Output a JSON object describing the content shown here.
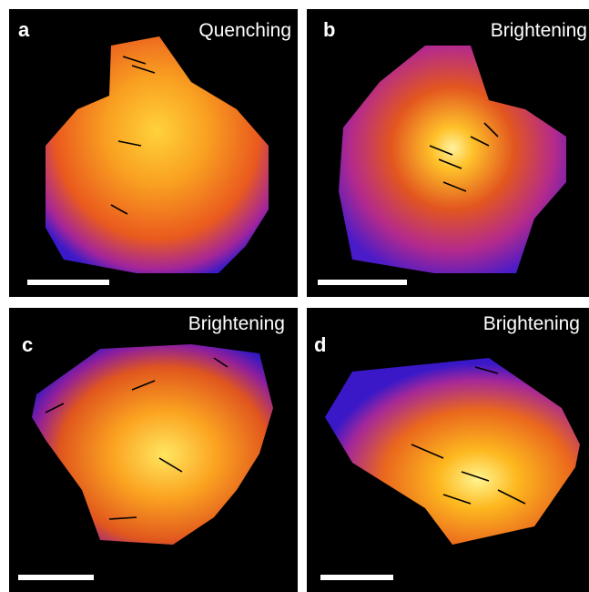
{
  "panels": [
    {
      "label": "a",
      "title": "Quenching"
    },
    {
      "label": "b",
      "title": "Brightening"
    },
    {
      "label": "c",
      "title": "Brightening"
    },
    {
      "label": "d",
      "title": "Brightening"
    }
  ]
}
